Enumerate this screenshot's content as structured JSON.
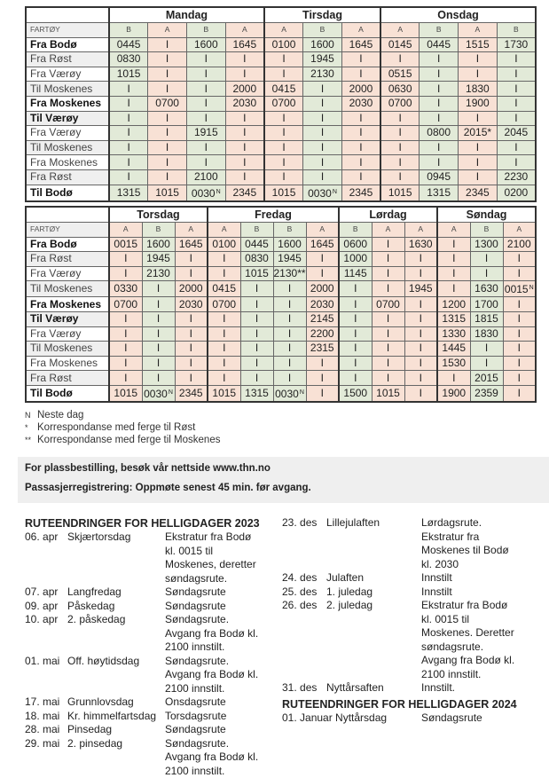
{
  "colors": {
    "vessel_A": "#f8e1d5",
    "vessel_B": "#e2ead8"
  },
  "vessel_header_label": "FARTØY",
  "tables": [
    {
      "days": [
        {
          "name": "Mandag",
          "vessels": [
            "B",
            "A",
            "B",
            "A"
          ]
        },
        {
          "name": "Tirsdag",
          "vessels": [
            "A",
            "B",
            "A"
          ]
        },
        {
          "name": "Onsdag",
          "vessels": [
            "A",
            "B",
            "A",
            "B"
          ]
        }
      ],
      "rows": [
        {
          "label": "Fra Bodø",
          "bold": true,
          "values": [
            "0445",
            "I",
            "1600",
            "1645",
            "0100",
            "1600",
            "1645",
            "0145",
            "0445",
            "1515",
            "1730"
          ]
        },
        {
          "label": "Fra Røst",
          "bold": false,
          "values": [
            "0830",
            "I",
            "I",
            "I",
            "I",
            "1945",
            "I",
            "I",
            "I",
            "I",
            "I"
          ]
        },
        {
          "label": "Fra Værøy",
          "bold": false,
          "values": [
            "1015",
            "I",
            "I",
            "I",
            "I",
            "2130",
            "I",
            "0515",
            "I",
            "I",
            "I"
          ]
        },
        {
          "label": "Til Moskenes",
          "bold": false,
          "values": [
            "I",
            "I",
            "I",
            "2000",
            "0415",
            "I",
            "2000",
            "0630",
            "I",
            "1830",
            "I"
          ]
        },
        {
          "label": "Fra Moskenes",
          "bold": true,
          "values": [
            "I",
            "0700",
            "I",
            "2030",
            "0700",
            "I",
            "2030",
            "0700",
            "I",
            "1900",
            "I"
          ]
        },
        {
          "label": "Til Værøy",
          "bold": true,
          "values": [
            "I",
            "I",
            "I",
            "I",
            "I",
            "I",
            "I",
            "I",
            "I",
            "I",
            "I"
          ]
        },
        {
          "label": "Fra Værøy",
          "bold": false,
          "values": [
            "I",
            "I",
            "1915",
            "I",
            "I",
            "I",
            "I",
            "I",
            "0800",
            "2015*",
            "2045"
          ]
        },
        {
          "label": "Til Moskenes",
          "bold": false,
          "values": [
            "I",
            "I",
            "I",
            "I",
            "I",
            "I",
            "I",
            "I",
            "I",
            "I",
            "I"
          ]
        },
        {
          "label": "Fra Moskenes",
          "bold": false,
          "values": [
            "I",
            "I",
            "I",
            "I",
            "I",
            "I",
            "I",
            "I",
            "I",
            "I",
            "I"
          ]
        },
        {
          "label": "Fra Røst",
          "bold": false,
          "values": [
            "I",
            "I",
            "2100",
            "I",
            "I",
            "I",
            "I",
            "I",
            "0945",
            "I",
            "2230"
          ]
        },
        {
          "label": "Til Bodø",
          "bold": true,
          "values": [
            "1315",
            "1015",
            "0030 N",
            "2345",
            "1015",
            "0030 N",
            "2345",
            "1015",
            "1315",
            "2345",
            "0200"
          ]
        }
      ]
    },
    {
      "days": [
        {
          "name": "Torsdag",
          "vessels": [
            "A",
            "B",
            "A"
          ]
        },
        {
          "name": "Fredag",
          "vessels": [
            "A",
            "B",
            "B",
            "A"
          ]
        },
        {
          "name": "Lørdag",
          "vessels": [
            "B",
            "A",
            "A"
          ]
        },
        {
          "name": "Søndag",
          "vessels": [
            "A",
            "B",
            "A"
          ]
        }
      ],
      "rows": [
        {
          "label": "Fra Bodø",
          "bold": true,
          "values": [
            "0015",
            "1600",
            "1645",
            "0100",
            "0445",
            "1600",
            "1645",
            "0600",
            "I",
            "1630",
            "I",
            "1300",
            "2100"
          ]
        },
        {
          "label": "Fra Røst",
          "bold": false,
          "values": [
            "I",
            "1945",
            "I",
            "I",
            "0830",
            "1945",
            "I",
            "1000",
            "I",
            "I",
            "I",
            "I",
            "I"
          ]
        },
        {
          "label": "Fra Værøy",
          "bold": false,
          "values": [
            "I",
            "2130",
            "I",
            "I",
            "1015",
            "2130**",
            "I",
            "1145",
            "I",
            "I",
            "I",
            "I",
            "I"
          ]
        },
        {
          "label": "Til Moskenes",
          "bold": false,
          "values": [
            "0330",
            "I",
            "2000",
            "0415",
            "I",
            "I",
            "2000",
            "I",
            "I",
            "1945",
            "I",
            "1630",
            "0015 N"
          ]
        },
        {
          "label": "Fra Moskenes",
          "bold": true,
          "values": [
            "0700",
            "I",
            "2030",
            "0700",
            "I",
            "I",
            "2030",
            "I",
            "0700",
            "I",
            "1200",
            "1700",
            "I"
          ]
        },
        {
          "label": "Til Værøy",
          "bold": true,
          "values": [
            "I",
            "I",
            "I",
            "I",
            "I",
            "I",
            "2145",
            "I",
            "I",
            "I",
            "1315",
            "1815",
            "I"
          ]
        },
        {
          "label": "Fra Værøy",
          "bold": false,
          "values": [
            "I",
            "I",
            "I",
            "I",
            "I",
            "I",
            "2200",
            "I",
            "I",
            "I",
            "1330",
            "1830",
            "I"
          ]
        },
        {
          "label": "Til Moskenes",
          "bold": false,
          "values": [
            "I",
            "I",
            "I",
            "I",
            "I",
            "I",
            "2315",
            "I",
            "I",
            "I",
            "1445",
            "I",
            "I"
          ]
        },
        {
          "label": "Fra Moskenes",
          "bold": false,
          "values": [
            "I",
            "I",
            "I",
            "I",
            "I",
            "I",
            "I",
            "I",
            "I",
            "I",
            "1530",
            "I",
            "I"
          ]
        },
        {
          "label": "Fra Røst",
          "bold": false,
          "values": [
            "I",
            "I",
            "I",
            "I",
            "I",
            "I",
            "I",
            "I",
            "I",
            "I",
            "I",
            "2015",
            "I"
          ]
        },
        {
          "label": "Til Bodø",
          "bold": true,
          "values": [
            "1015",
            "0030 N",
            "2345",
            "1015",
            "1315",
            "0030 N",
            "I",
            "1500",
            "1015",
            "I",
            "1900",
            "2359",
            "I"
          ]
        }
      ]
    }
  ],
  "footnotes": [
    {
      "symbol": "N",
      "text": "Neste dag"
    },
    {
      "symbol": "*",
      "text": "Korrespondanse med ferge til Røst"
    },
    {
      "symbol": "**",
      "text": "Korrespondanse med ferge til Moskenes"
    }
  ],
  "info": {
    "booking": "For plassbestilling, besøk vår nettside www.thn.no",
    "checkin": "Passasjerregistrering: Oppmøte senest 45 min. før avgang."
  },
  "holidays_2023": {
    "title": "RUTEENDRINGER FOR HELLIGDAGER 2023",
    "col1": [
      {
        "date": "06. apr",
        "name": "Skjærtorsdag",
        "desc": [
          "Ekstratur fra Bodø",
          "kl. 0015 til",
          "Moskenes, deretter",
          "søndagsrute."
        ]
      },
      {
        "date": "07. apr",
        "name": "Langfredag",
        "desc": [
          "Søndagsrute"
        ]
      },
      {
        "date": "09. apr",
        "name": "Påskedag",
        "desc": [
          "Søndagsrute"
        ]
      },
      {
        "date": "10. apr",
        "name": "2. påskedag",
        "desc": [
          "Søndagsrute.",
          "Avgang fra Bodø kl.",
          "2100 innstilt."
        ]
      },
      {
        "date": "01. mai",
        "name": "Off. høytidsdag",
        "desc": [
          "Søndagsrute.",
          "Avgang fra Bodø kl.",
          "2100 innstilt."
        ]
      },
      {
        "date": "17. mai",
        "name": "Grunnlovsdag",
        "desc": [
          "Onsdagsrute"
        ]
      },
      {
        "date": "18. mai",
        "name": "Kr. himmelfartsdag",
        "desc": [
          "Torsdagsrute"
        ]
      },
      {
        "date": "28. mai",
        "name": "Pinsedag",
        "desc": [
          "Søndagsrute"
        ]
      },
      {
        "date": "29. mai",
        "name": "2. pinsedag",
        "desc": [
          "Søndagsrute.",
          "Avgang fra Bodø kl.",
          "2100 innstilt."
        ]
      }
    ],
    "col2": [
      {
        "date": "23. des",
        "name": "Lillejulaften",
        "desc": [
          "Lørdagsrute.",
          "Ekstratur fra",
          "Moskenes til Bodø",
          "kl. 2030"
        ]
      },
      {
        "date": "24. des",
        "name": "Julaften",
        "desc": [
          "Innstilt"
        ]
      },
      {
        "date": "25. des",
        "name": "1. juledag",
        "desc": [
          "Innstilt"
        ]
      },
      {
        "date": "26. des",
        "name": "2. juledag",
        "desc": [
          "Ekstratur fra Bodø",
          "kl. 0015 til",
          "Moskenes. Deretter",
          "søndagsrute.",
          "Avgang fra Bodø kl.",
          "2100 innstilt."
        ]
      },
      {
        "date": "31. des",
        "name": "Nyttårsaften",
        "desc": [
          "Innstilt."
        ]
      }
    ]
  },
  "holidays_2024": {
    "title": "RUTEENDRINGER FOR HELLIGDAGER 2024",
    "entries": [
      {
        "date": "01. Januar Nyttårsdag",
        "desc": [
          "Søndagsrute"
        ]
      }
    ]
  }
}
